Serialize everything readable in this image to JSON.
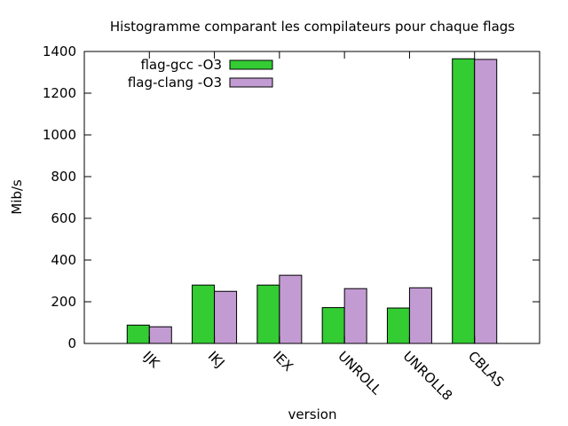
{
  "chart_data": {
    "type": "bar",
    "title": "Histogramme comparant les compilateurs pour chaque flags",
    "xlabel": "version",
    "ylabel": "Mib/s",
    "categories": [
      "IJK",
      "IKJ",
      "IEX",
      "UNROLL",
      "UNROLL8",
      "CBLAS"
    ],
    "series": [
      {
        "name": "flag-gcc -O3",
        "color": "#33cc33",
        "values": [
          88,
          280,
          280,
          172,
          170,
          1365
        ]
      },
      {
        "name": "flag-clang -O3",
        "color": "#c39bd3",
        "values": [
          80,
          250,
          327,
          263,
          267,
          1362
        ]
      }
    ],
    "ylim": [
      0,
      1400
    ],
    "yticks": [
      0,
      200,
      400,
      600,
      800,
      1000,
      1200,
      1400
    ],
    "grid": false,
    "legend_position": "top-left"
  }
}
